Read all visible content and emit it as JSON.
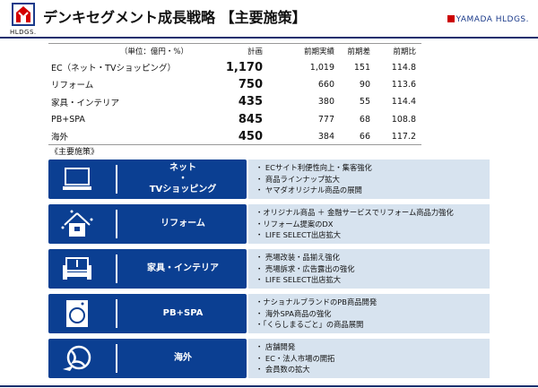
{
  "header": {
    "title": "デンキセグメント成長戦略 【主要施策】",
    "logo_sub": "HLDGS.",
    "brand": "YAMADA HLDGS.",
    "accent": "#0b3f92"
  },
  "table": {
    "headers": [
      "（単位：億円・%）",
      "計画",
      "前期実績",
      "前期差",
      "前期比"
    ],
    "rows": [
      [
        "EC（ネット・TVショッピング）",
        "1,170",
        "1,019",
        "151",
        "114.8"
      ],
      [
        "リフォーム",
        "750",
        "660",
        "90",
        "113.6"
      ],
      [
        "家具・インテリア",
        "435",
        "380",
        "55",
        "114.4"
      ],
      [
        "PB+SPA",
        "845",
        "777",
        "68",
        "108.8"
      ],
      [
        "海外",
        "450",
        "384",
        "66",
        "117.2"
      ]
    ]
  },
  "section_label": "《主要施策》",
  "cards": [
    {
      "icon": "laptop-icon",
      "label": "ネット\n・\nTVショッピング",
      "items": [
        "・ ECサイト利便性向上・集客強化",
        "・ 商品ラインナップ拡大",
        "・ ヤマダオリジナル商品の展開"
      ]
    },
    {
      "icon": "house-icon",
      "label": "リフォーム",
      "items": [
        "・オリジナル商品 ＋ 金融サービスでリフォーム商品力強化",
        "・リフォーム提案のDX",
        "・ LIFE SELECT出店拡大"
      ]
    },
    {
      "icon": "sofa-icon",
      "label": "家具・インテリア",
      "items": [
        "・ 売場改装・品揃え強化",
        "・ 売場訴求・広告露出の強化",
        "・ LIFE SELECT出店拡大"
      ]
    },
    {
      "icon": "washing-machine-icon",
      "label": "PB+SPA",
      "items": [
        "・ナショナルブランドのPB商品開発",
        "・ 海外SPA商品の強化",
        "・「くらしまるごと」の商品展開"
      ]
    },
    {
      "icon": "globe-airplane-icon",
      "label": "海外",
      "items": [
        "・ 店舗開発",
        "・ EC・法人市場の開拓",
        "・ 会員数の拡大"
      ]
    }
  ]
}
